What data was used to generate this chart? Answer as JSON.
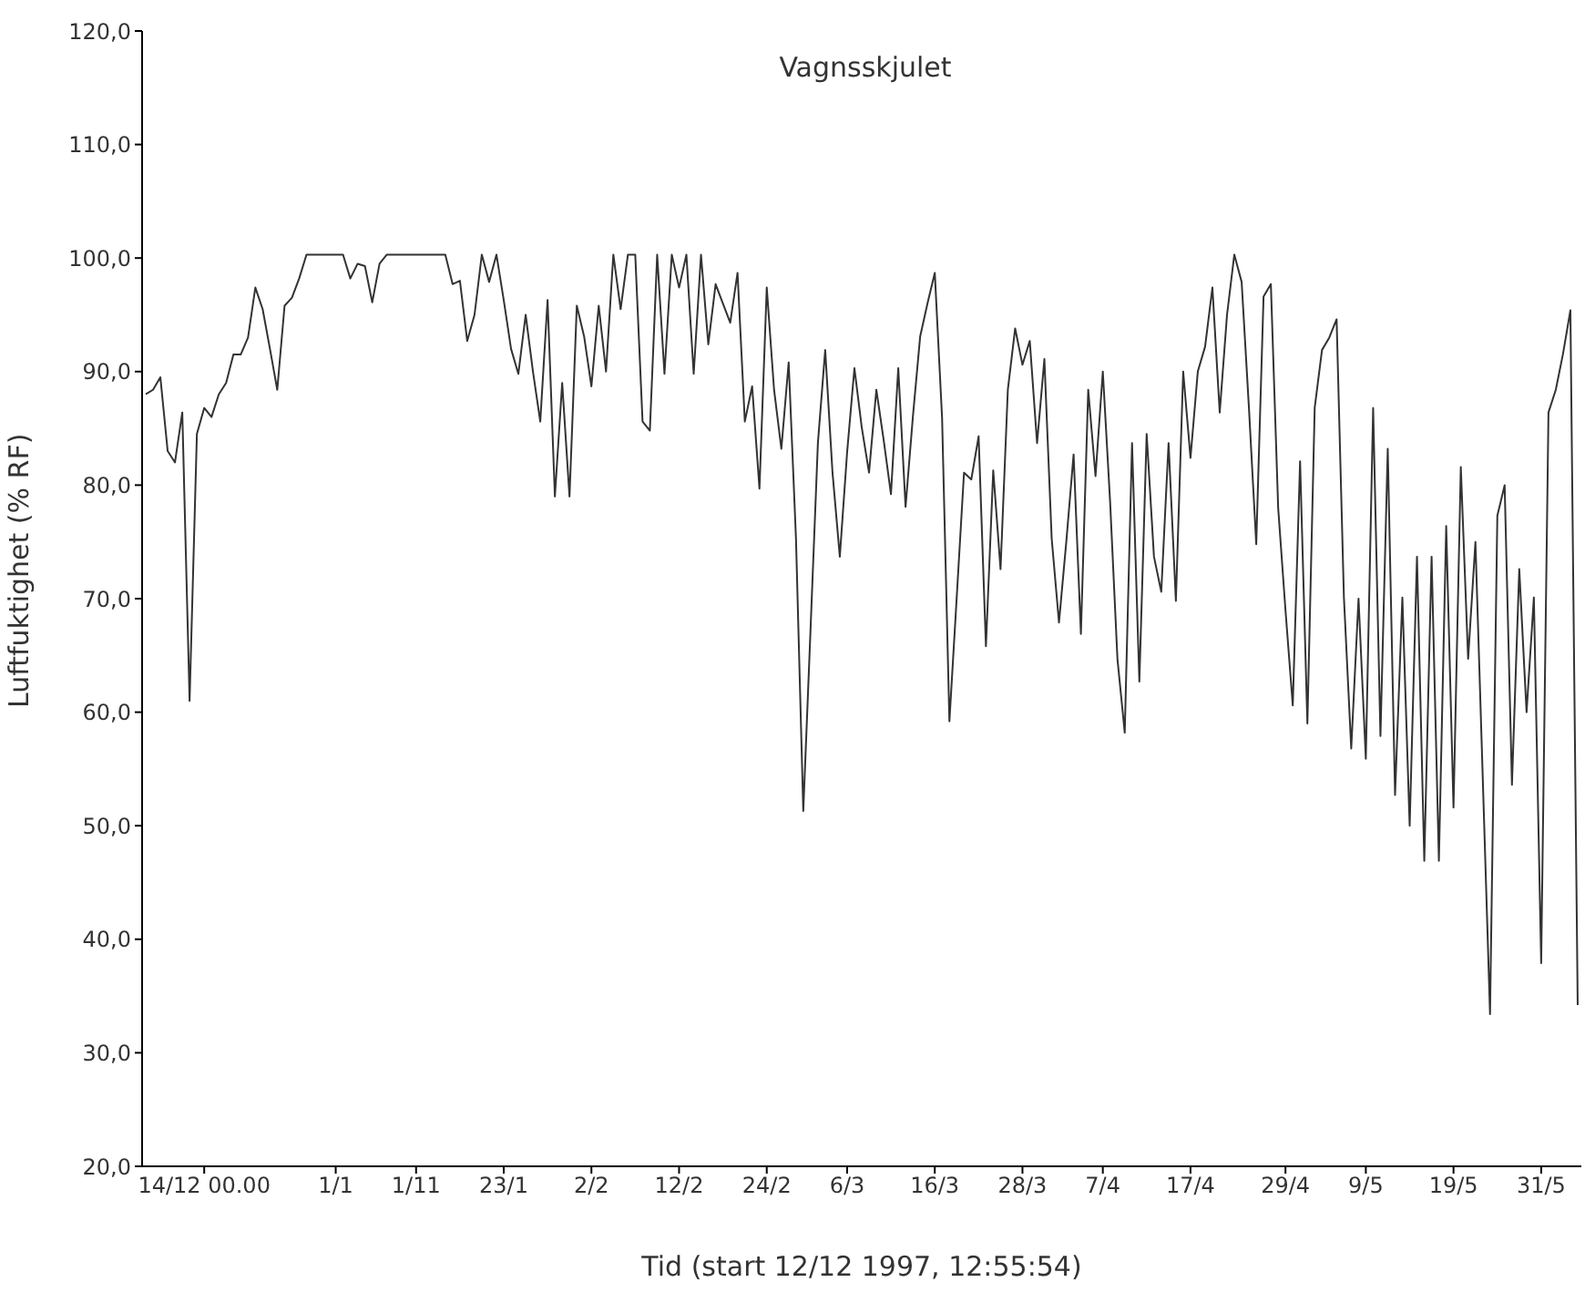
{
  "chart_data": {
    "type": "line",
    "title": "Vagnsskjulet",
    "xlabel": "Tid (start 12/12 1997, 12:55:54)",
    "ylabel": "Luftfuktighet (% RF)",
    "categories": [
      null,
      null,
      null,
      null,
      null,
      null,
      null,
      null,
      "14/12 00.00",
      null,
      null,
      null,
      null,
      null,
      null,
      null,
      null,
      null,
      null,
      null,
      null,
      null,
      null,
      null,
      null,
      null,
      "1/1",
      null,
      null,
      null,
      null,
      null,
      null,
      null,
      null,
      null,
      null,
      "1/11",
      null,
      null,
      null,
      null,
      null,
      null,
      null,
      null,
      null,
      null,
      null,
      "23/1",
      null,
      null,
      null,
      null,
      null,
      null,
      null,
      null,
      null,
      null,
      null,
      "2/2",
      null,
      null,
      null,
      null,
      null,
      null,
      null,
      null,
      null,
      null,
      null,
      "12/2",
      null,
      null,
      null,
      null,
      null,
      null,
      null,
      null,
      null,
      null,
      null,
      "24/2",
      null,
      null,
      null,
      null,
      null,
      null,
      null,
      null,
      null,
      null,
      "6/3",
      null,
      null,
      null,
      null,
      null,
      null,
      null,
      null,
      null,
      null,
      null,
      "16/3",
      null,
      null,
      null,
      null,
      null,
      null,
      null,
      null,
      null,
      null,
      null,
      "28/3",
      null,
      null,
      null,
      null,
      null,
      null,
      null,
      null,
      null,
      null,
      "7/4",
      null,
      null,
      null,
      null,
      null,
      null,
      null,
      null,
      null,
      null,
      null,
      "17/4",
      null,
      null,
      null,
      null,
      null,
      null,
      null,
      null,
      null,
      null,
      null,
      null,
      "29/4",
      null,
      null,
      null,
      null,
      null,
      null,
      null,
      null,
      null,
      null,
      "9/5",
      null,
      null,
      null,
      null,
      null,
      null,
      null,
      null,
      null,
      null,
      null,
      "19/5",
      null,
      null,
      null,
      null,
      null,
      null,
      null,
      null,
      null,
      null,
      null,
      "31/5",
      null,
      null,
      null,
      null,
      null
    ],
    "ylim": [
      20,
      120
    ],
    "yticks": [
      {
        "value": 20,
        "label": "20,0"
      },
      {
        "value": 30,
        "label": "30,0"
      },
      {
        "value": 40,
        "label": "40,0"
      },
      {
        "value": 50,
        "label": "50,0"
      },
      {
        "value": 60,
        "label": "60,0"
      },
      {
        "value": 70,
        "label": "70,0"
      },
      {
        "value": 80,
        "label": "80,0"
      },
      {
        "value": 90,
        "label": "90,0"
      },
      {
        "value": 100,
        "label": "100,0"
      },
      {
        "value": 110,
        "label": "110,0"
      },
      {
        "value": 120,
        "label": "120,0"
      }
    ],
    "grid": false,
    "marker": "none",
    "line_style": "solid",
    "series": [
      {
        "color": "#333333",
        "values": [
          88,
          88.4,
          89.5,
          83,
          82,
          86.4,
          61,
          84.5,
          86.8,
          86,
          88,
          89,
          91.5,
          91.5,
          93,
          97.4,
          95.5,
          92,
          88.4,
          95.8,
          96.5,
          98.2,
          100.3,
          100.3,
          100.3,
          100.3,
          100.3,
          100.3,
          98.2,
          99.5,
          99.3,
          96.1,
          99.5,
          100.3,
          100.3,
          100.3,
          100.3,
          100.3,
          100.3,
          100.3,
          100.3,
          100.3,
          97.7,
          98,
          92.7,
          95,
          100.3,
          97.9,
          100.3,
          96.3,
          92,
          89.8,
          95,
          90,
          85.6,
          96.3,
          79,
          89,
          79,
          95.8,
          93.1,
          88.7,
          95.8,
          90,
          100.3,
          95.5,
          100.3,
          100.3,
          85.6,
          84.8,
          100.3,
          89.8,
          100.3,
          97.4,
          100.3,
          89.8,
          100.3,
          92.4,
          97.7,
          96,
          94.3,
          98.7,
          85.6,
          88.7,
          79.7,
          97.4,
          88.4,
          83.2,
          90.8,
          75.3,
          51.3,
          67.4,
          83.7,
          91.9,
          81.1,
          73.7,
          82.9,
          90.3,
          85.1,
          81.1,
          88.4,
          84,
          79.2,
          90.3,
          78.1,
          86,
          93.1,
          96,
          98.7,
          85.9,
          59.2,
          70.1,
          81.1,
          80.5,
          84.3,
          65.8,
          81.3,
          72.6,
          88.4,
          93.8,
          90.6,
          92.7,
          83.7,
          91.1,
          75.3,
          67.9,
          75,
          82.7,
          66.9,
          88.4,
          80.8,
          90,
          78.5,
          64.7,
          58.2,
          83.7,
          62.7,
          84.5,
          73.7,
          70.6,
          83.7,
          69.8,
          90,
          82.4,
          90,
          92.2,
          97.4,
          86.4,
          95,
          100.3,
          97.9,
          86.8,
          74.8,
          96.6,
          97.7,
          78,
          69,
          60.6,
          82.1,
          59,
          86.8,
          91.9,
          93,
          94.6,
          70.1,
          56.8,
          70,
          55.9,
          86.8,
          57.9,
          83.2,
          52.7,
          70.1,
          50,
          73.7,
          46.9,
          73.7,
          46.9,
          76.4,
          51.6,
          81.6,
          64.7,
          75,
          54.3,
          33.4,
          77.3,
          80,
          53.6,
          72.6,
          60,
          70.1,
          37.9,
          86.4,
          88.4,
          91.6,
          95.4,
          34.2
        ]
      }
    ]
  }
}
